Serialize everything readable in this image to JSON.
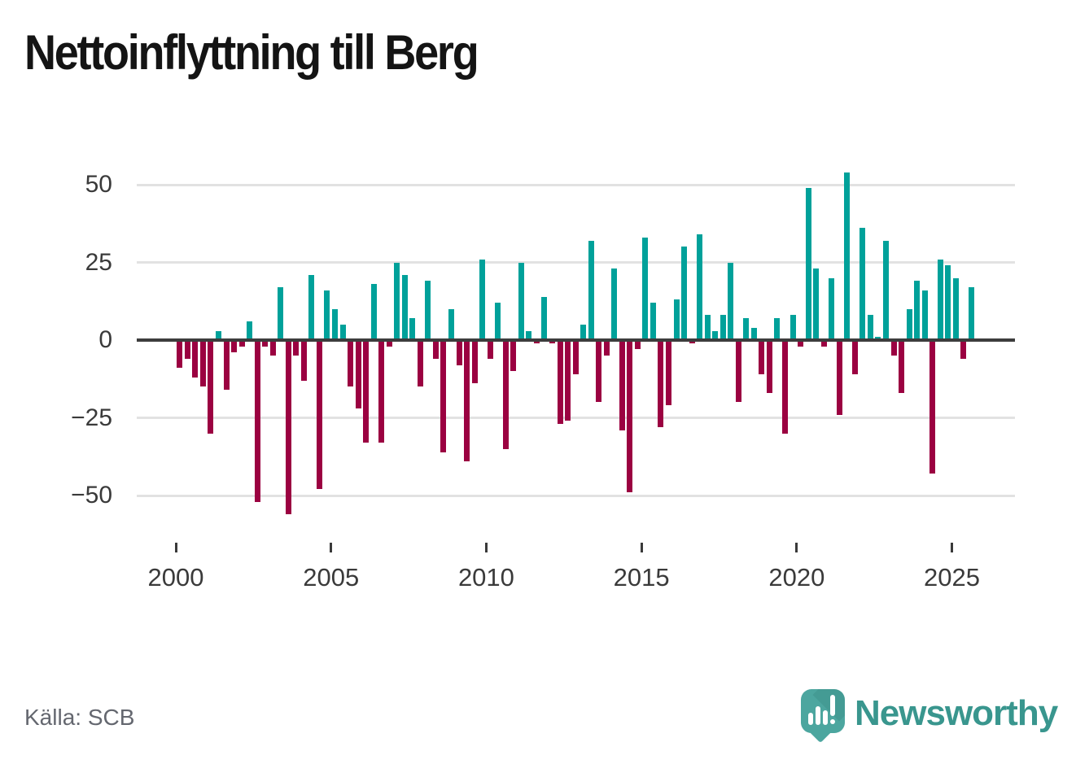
{
  "title": "Nettoinflyttning till Berg",
  "source": "Källa: SCB",
  "brand": {
    "name": "Newsworthy",
    "logo_icon": "bar-chart-speech-bubble"
  },
  "colors": {
    "positive_bar": "#00a19a",
    "negative_bar": "#9b0141",
    "zero_line": "#3d3d3d",
    "gridline": "#e2e2e2",
    "axis_text": "#3a3a3a",
    "title_text": "#141414",
    "source_text": "#64676f",
    "brand_teal": "#39968e",
    "logo_teal": "#4ca69f"
  },
  "chart_data": {
    "type": "bar",
    "title": "Nettoinflyttning till Berg",
    "xlabel": "",
    "ylabel": "",
    "legend": null,
    "grid": true,
    "ylim": [
      -60,
      58
    ],
    "y_ticks": [
      {
        "label": "50",
        "value": 50
      },
      {
        "label": "25",
        "value": 25
      },
      {
        "label": "0",
        "value": 0
      },
      {
        "label": "−25",
        "value": -25
      },
      {
        "label": "−50",
        "value": -50
      }
    ],
    "x_ticks": [
      {
        "label": "2000",
        "year": 2000
      },
      {
        "label": "2005",
        "year": 2005
      },
      {
        "label": "2010",
        "year": 2010
      },
      {
        "label": "2015",
        "year": 2015
      },
      {
        "label": "2020",
        "year": 2020
      },
      {
        "label": "2025",
        "year": 2025
      }
    ],
    "x_start": {
      "year": 2000,
      "quarter": 1
    },
    "x_end": {
      "year": 2025,
      "quarter": 3
    },
    "frequency": "quarterly",
    "values": [
      -9,
      -6,
      -12,
      -15,
      -30,
      3,
      -16,
      -4,
      -2,
      6,
      -52,
      -2,
      -5,
      17,
      -56,
      -5,
      -13,
      21,
      -48,
      16,
      10,
      5,
      -15,
      -22,
      -33,
      18,
      -33,
      -2,
      25,
      21,
      7,
      -15,
      19,
      -6,
      -36,
      10,
      -8,
      -39,
      -14,
      26,
      -6,
      12,
      -35,
      -10,
      25,
      3,
      -1,
      14,
      -1,
      -27,
      -26,
      -11,
      5,
      32,
      -20,
      -5,
      23,
      -29,
      -49,
      -3,
      33,
      12,
      -28,
      -21,
      13,
      30,
      -1,
      34,
      8,
      3,
      8,
      25,
      -20,
      7,
      4,
      -11,
      -17,
      7,
      -30,
      8,
      -2,
      49,
      23,
      -2,
      20,
      -24,
      54,
      -11,
      36,
      8,
      1,
      32,
      -5,
      -17,
      10,
      19,
      16,
      -43,
      26,
      24,
      20,
      -6,
      17
    ]
  }
}
